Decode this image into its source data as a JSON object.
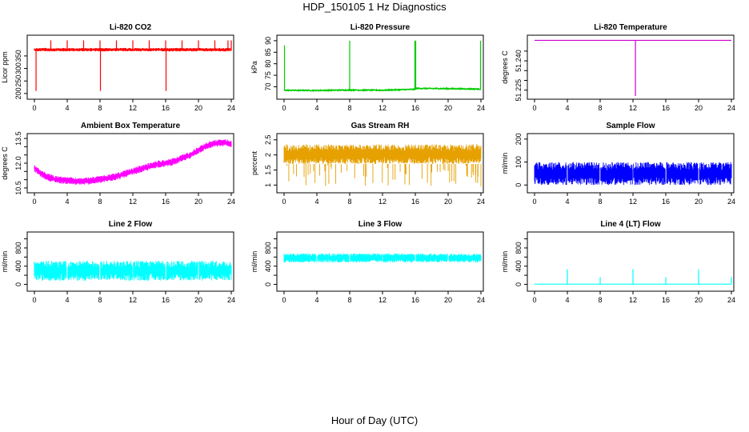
{
  "page": {
    "title": "HDP_150105  1 Hz Diagnostics",
    "x_caption": "Hour of Day (UTC)"
  },
  "colors": {
    "red": "#ff0000",
    "green": "#00cc00",
    "purple": "#cc00cc",
    "magenta": "#ff00ff",
    "orange": "#e6a000",
    "blue": "#0000ff",
    "cyan": "#00ffff",
    "axis": "#000000"
  },
  "chart_data": [
    {
      "type": "line",
      "title": "Li-820 CO2",
      "ylabel": "Licor ppm",
      "color": "#ff0000",
      "xlim": [
        0,
        24
      ],
      "x_ticks": [
        "0",
        "4",
        "8",
        "12",
        "16",
        "20",
        "24"
      ],
      "ylim": [
        190,
        420
      ],
      "y_ticks": [
        200,
        250,
        300,
        350
      ],
      "band": {
        "low": 368,
        "high": 382
      },
      "spikes": [
        {
          "x": 0.2,
          "y": 210
        },
        {
          "x": 2.0,
          "y": 412
        },
        {
          "x": 4.0,
          "y": 412
        },
        {
          "x": 6.0,
          "y": 412
        },
        {
          "x": 8.0,
          "y": 412
        },
        {
          "x": 8.05,
          "y": 210
        },
        {
          "x": 10.0,
          "y": 412
        },
        {
          "x": 12.0,
          "y": 412
        },
        {
          "x": 14.0,
          "y": 412
        },
        {
          "x": 16.0,
          "y": 412
        },
        {
          "x": 16.05,
          "y": 210
        },
        {
          "x": 18.0,
          "y": 412
        },
        {
          "x": 20.0,
          "y": 412
        },
        {
          "x": 22.0,
          "y": 412
        },
        {
          "x": 23.6,
          "y": 412
        },
        {
          "x": 24.0,
          "y": 412
        }
      ]
    },
    {
      "type": "line",
      "title": "Li-820 Pressure",
      "ylabel": "kPa",
      "color": "#00cc00",
      "xlim": [
        0,
        24
      ],
      "x_ticks": [
        "0",
        "4",
        "8",
        "12",
        "16",
        "20",
        "24"
      ],
      "ylim": [
        66,
        91
      ],
      "y_ticks": [
        70,
        75,
        80,
        85,
        90
      ],
      "x": [
        0,
        4,
        8,
        12,
        15.9,
        16.1,
        20,
        24
      ],
      "y": [
        68.5,
        68.4,
        68.6,
        68.5,
        68.9,
        69.3,
        69.2,
        69.0
      ],
      "spikes": [
        {
          "x": 0.05,
          "y": 88
        },
        {
          "x": 8.0,
          "y": 90
        },
        {
          "x": 15.95,
          "y": 90
        },
        {
          "x": 16.05,
          "y": 90
        },
        {
          "x": 23.95,
          "y": 90
        }
      ]
    },
    {
      "type": "line",
      "title": "Li-820 Temperature",
      "ylabel": "degrees C",
      "color": "#cc00cc",
      "xlim": [
        0,
        24
      ],
      "x_ticks": [
        "0",
        "4",
        "8",
        "12",
        "16",
        "20",
        "24"
      ],
      "ylim": [
        51.222,
        51.2515
      ],
      "y_ticks": [
        51.225,
        51.23,
        51.235,
        51.24,
        51.245
      ],
      "y_ticklabels_shown": [
        "51.225",
        "51.240"
      ],
      "level": 51.2505,
      "spikes": [
        {
          "x": 12.3,
          "y": 51.222
        }
      ]
    },
    {
      "type": "line",
      "title": "Ambient Box Temperature",
      "ylabel": "degrees C",
      "color": "#ff00ff",
      "xlim": [
        0,
        24
      ],
      "x_ticks": [
        "0",
        "4",
        "8",
        "12",
        "16",
        "20",
        "24"
      ],
      "ylim": [
        10.4,
        13.6
      ],
      "y_ticks": [
        10.5,
        11.0,
        11.5,
        12.0,
        12.5,
        13.0,
        13.5
      ],
      "y_ticklabels_shown": [
        "10.5",
        "12.0",
        "13.5"
      ],
      "x": [
        0,
        1,
        2,
        3,
        4,
        5,
        6,
        7,
        8,
        9,
        10,
        11,
        12,
        13,
        14,
        15,
        16,
        17,
        18,
        19,
        20,
        21,
        22,
        23,
        24
      ],
      "y": [
        11.7,
        11.3,
        11.1,
        11.0,
        10.95,
        10.9,
        10.9,
        10.95,
        11.0,
        11.1,
        11.2,
        11.35,
        11.5,
        11.65,
        11.8,
        11.95,
        12.0,
        12.1,
        12.3,
        12.5,
        12.8,
        13.05,
        13.2,
        13.25,
        13.2
      ],
      "band_half_width": 0.22
    },
    {
      "type": "line",
      "title": "Gas Stream RH",
      "ylabel": "percent",
      "color": "#e6a000",
      "xlim": [
        0,
        24
      ],
      "x_ticks": [
        "0",
        "4",
        "8",
        "12",
        "16",
        "20",
        "24"
      ],
      "ylim": [
        0.85,
        2.6
      ],
      "y_ticks": [
        1.0,
        1.5,
        2.0,
        2.5
      ],
      "band": {
        "low": 1.7,
        "high": 2.35
      },
      "noise_floor": 0.95
    },
    {
      "type": "line",
      "title": "Sample Flow",
      "ylabel": "ml/min",
      "color": "#0000ff",
      "xlim": [
        0,
        24
      ],
      "x_ticks": [
        "0",
        "4",
        "8",
        "12",
        "16",
        "20",
        "24"
      ],
      "ylim": [
        -20,
        210
      ],
      "y_ticks": [
        0,
        100,
        200
      ],
      "band": {
        "low": 0,
        "high": 100
      },
      "gaps_x": [
        4.0,
        8.0,
        12.0,
        16.0,
        20.0
      ]
    },
    {
      "type": "line",
      "title": "Line 2 Flow",
      "ylabel": "ml/min",
      "color": "#00ffff",
      "xlim": [
        0,
        24
      ],
      "x_ticks": [
        "0",
        "4",
        "8",
        "12",
        "16",
        "20",
        "24"
      ],
      "ylim": [
        -80,
        1080
      ],
      "y_ticks": [
        0,
        200,
        400,
        600,
        800,
        1000
      ],
      "y_ticklabels_shown": [
        "0",
        "400",
        "800"
      ],
      "band": {
        "low": 80,
        "high": 520
      },
      "gaps_x": [
        4.0,
        8.0,
        12.0,
        16.0,
        20.0
      ]
    },
    {
      "type": "line",
      "title": "Line 3 Flow",
      "ylabel": "ml/min",
      "color": "#00ffff",
      "xlim": [
        0,
        24
      ],
      "x_ticks": [
        "0",
        "4",
        "8",
        "12",
        "16",
        "20",
        "24"
      ],
      "ylim": [
        -80,
        1080
      ],
      "y_ticks": [
        0,
        200,
        400,
        600,
        800,
        1000
      ],
      "y_ticklabels_shown": [
        "0",
        "400",
        "800"
      ],
      "band": {
        "low": 480,
        "high": 680
      },
      "gaps_x": [
        4.0,
        8.0,
        12.0,
        16.0,
        20.0
      ]
    },
    {
      "type": "line",
      "title": "Line 4 (LT) Flow",
      "ylabel": "ml/min",
      "color": "#00ffff",
      "xlim": [
        0,
        24
      ],
      "x_ticks": [
        "0",
        "4",
        "8",
        "12",
        "16",
        "20",
        "24"
      ],
      "ylim": [
        -80,
        1080
      ],
      "y_ticks": [
        0,
        200,
        400,
        600,
        800,
        1000
      ],
      "y_ticklabels_shown": [
        "0",
        "400",
        "800"
      ],
      "level": 5,
      "spikes": [
        {
          "x": 4.0,
          "y": 330
        },
        {
          "x": 8.0,
          "y": 160
        },
        {
          "x": 12.0,
          "y": 330
        },
        {
          "x": 16.0,
          "y": 160
        },
        {
          "x": 20.0,
          "y": 330
        },
        {
          "x": 24.0,
          "y": 160
        }
      ]
    }
  ]
}
